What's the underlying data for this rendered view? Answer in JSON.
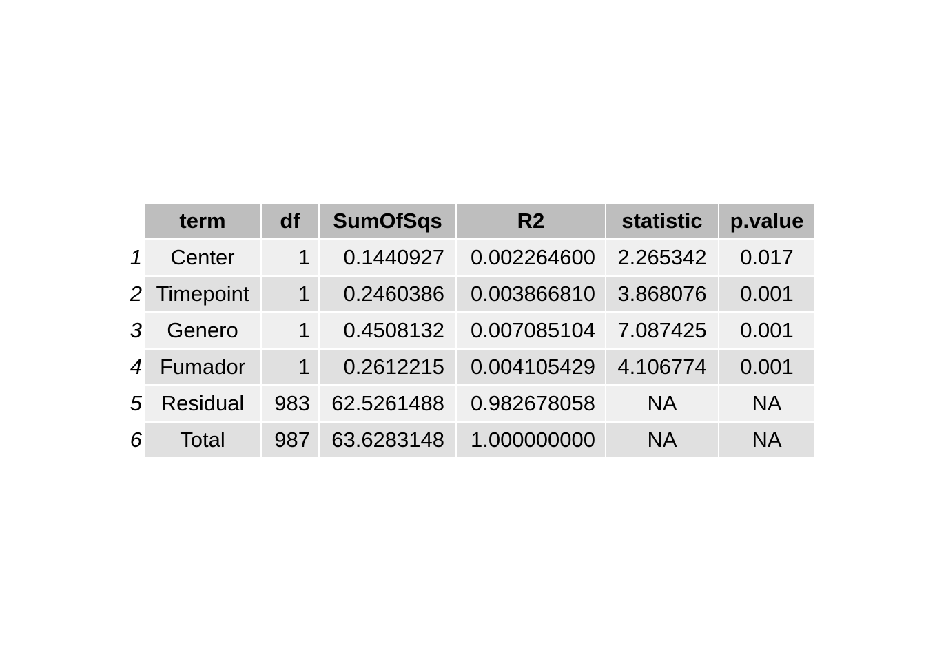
{
  "chart_data": {
    "type": "table",
    "columns": [
      "term",
      "df",
      "SumOfSqs",
      "R2",
      "statistic",
      "p.value"
    ],
    "row_names": [
      "1",
      "2",
      "3",
      "4",
      "5",
      "6"
    ],
    "rows": [
      [
        "Center",
        "1",
        "0.1440927",
        "0.002264600",
        "2.265342",
        "0.017"
      ],
      [
        "Timepoint",
        "1",
        "0.2460386",
        "0.003866810",
        "3.868076",
        "0.001"
      ],
      [
        "Genero",
        "1",
        "0.4508132",
        "0.007085104",
        "7.087425",
        "0.001"
      ],
      [
        "Fumador",
        "1",
        "0.2612215",
        "0.004105429",
        "4.106774",
        "0.001"
      ],
      [
        "Residual",
        "983",
        "62.5261488",
        "0.982678058",
        "NA",
        "NA"
      ],
      [
        "Total",
        "987",
        "63.6283148",
        "1.000000000",
        "NA",
        "NA"
      ]
    ],
    "colors": {
      "header_fill": "#bebebe",
      "row_fill_odd": "#efefef",
      "row_fill_even": "#e0e0e0",
      "separator": "#ffffff",
      "text": "#000000"
    }
  }
}
